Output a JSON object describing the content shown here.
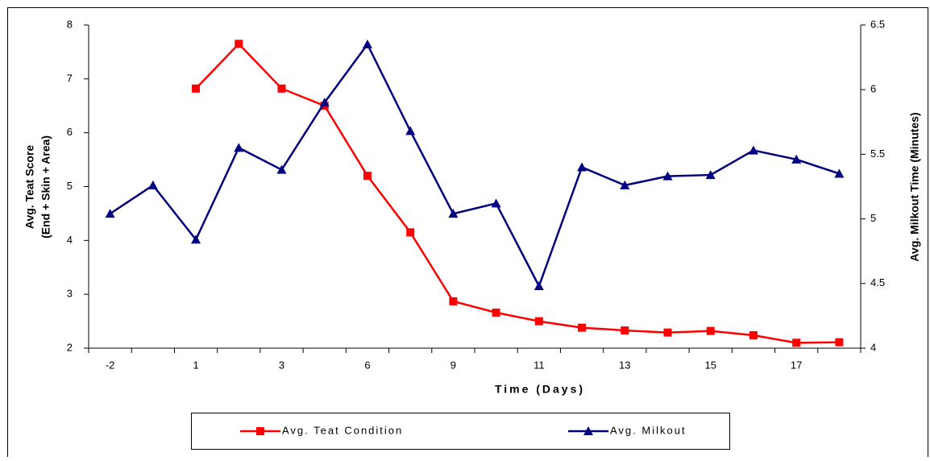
{
  "chart_data": {
    "type": "line",
    "xlabel": "Time (Days)",
    "ylabel": [
      "Avg. Teat Score",
      "(End + Skin + Area)"
    ],
    "y2label": "Avg. Milkout Time (Minutes)",
    "categories": [
      "-2",
      null,
      "1",
      null,
      "3",
      null,
      "6",
      null,
      "9",
      null,
      "11",
      null,
      "13",
      null,
      "15",
      null,
      "17",
      null
    ],
    "ylim": [
      2,
      8
    ],
    "yticks": [
      2,
      3,
      4,
      5,
      6,
      7,
      8
    ],
    "y2lim": [
      4,
      6.5
    ],
    "y2ticks": [
      4,
      4.5,
      5,
      5.5,
      6,
      6.5
    ],
    "legend": "bottom",
    "series": [
      {
        "name": "Avg. Teat Condition",
        "color": "#ff0000",
        "marker": "square",
        "values": [
          null,
          null,
          6.82,
          7.65,
          6.82,
          6.5,
          5.2,
          4.15,
          2.87,
          2.66,
          2.5,
          2.38,
          2.33,
          2.29,
          2.32,
          2.24,
          2.1,
          2.11
        ]
      },
      {
        "name": "Avg. Milkout",
        "color": "#000080",
        "marker": "triangle",
        "axis": "y2",
        "values": [
          5.04,
          5.26,
          4.84,
          5.55,
          5.38,
          5.9,
          6.35,
          5.68,
          5.04,
          5.12,
          4.48,
          5.4,
          5.26,
          5.33,
          5.34,
          5.53,
          5.46,
          5.35
        ]
      }
    ]
  }
}
